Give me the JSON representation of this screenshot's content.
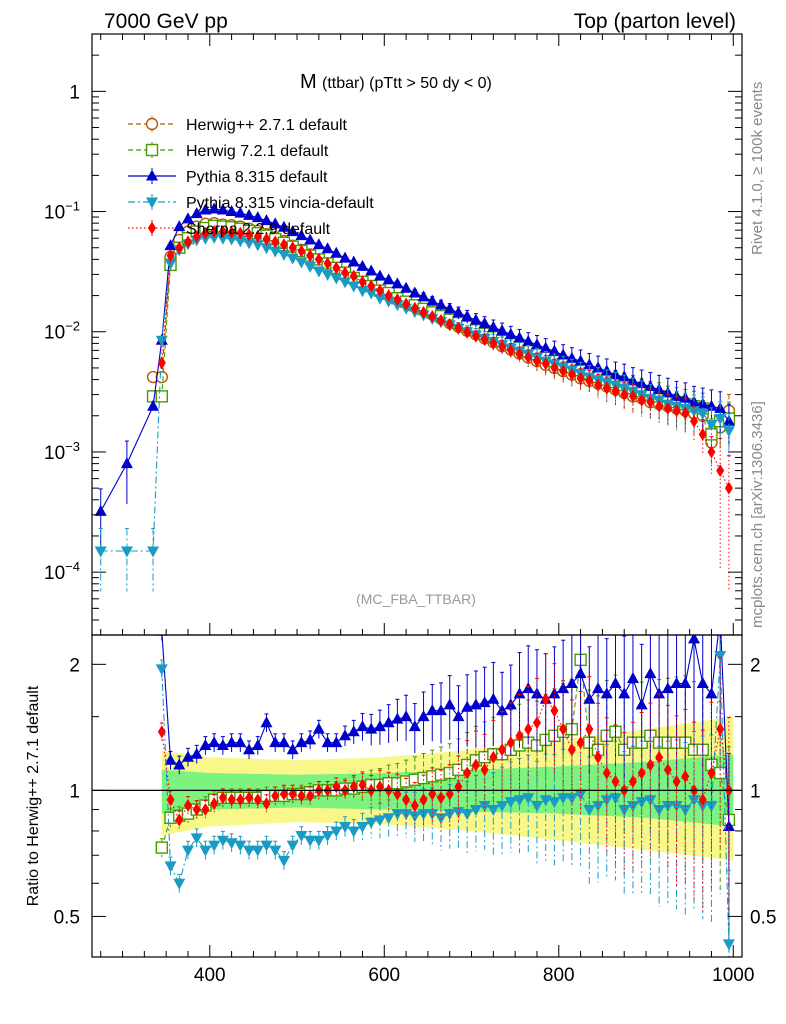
{
  "header": {
    "left": "7000 GeV pp",
    "right": "Top (parton level)"
  },
  "side_labels": {
    "rivet": "Rivet 4.1.0, ≥ 100k events",
    "mcplots": "mcplots.cern.ch [arXiv:1306.3436]"
  },
  "chart_data": [
    {
      "type": "line",
      "panel": "main",
      "title_main": "M",
      "title_sub": "(ttbar) (pTtt > 50 dy < 0)",
      "watermark": "(MC_FBA_TTBAR)",
      "xlabel": "",
      "ylabel": "",
      "x_range": [
        265,
        1010
      ],
      "y_scale": "log",
      "y_range": [
        3e-05,
        3.0
      ],
      "y_ticks": [
        {
          "value": 1,
          "label": "1"
        },
        {
          "value": 0.1,
          "label": "10^-1",
          "base": "10",
          "exp": "−1"
        },
        {
          "value": 0.01,
          "label": "10^-2",
          "base": "10",
          "exp": "−2"
        },
        {
          "value": 0.001,
          "label": "10^-3",
          "base": "10",
          "exp": "−3"
        },
        {
          "value": 0.0001,
          "label": "10^-4",
          "base": "10",
          "exp": "−4"
        }
      ],
      "x_ticks": [
        400,
        600,
        800,
        1000
      ],
      "legend_position": "top-left",
      "x": [
        275,
        305,
        335,
        345,
        355,
        365,
        375,
        385,
        395,
        405,
        415,
        425,
        435,
        445,
        455,
        465,
        475,
        485,
        495,
        505,
        515,
        525,
        535,
        545,
        555,
        565,
        575,
        585,
        595,
        605,
        615,
        625,
        635,
        645,
        655,
        665,
        675,
        685,
        695,
        705,
        715,
        725,
        735,
        745,
        755,
        765,
        775,
        785,
        795,
        805,
        815,
        825,
        835,
        845,
        855,
        865,
        875,
        885,
        895,
        905,
        915,
        925,
        935,
        945,
        955,
        965,
        975,
        985,
        995
      ],
      "series": [
        {
          "name": "Herwig++ 2.7.1 default",
          "color": "#b35900",
          "marker": "circle-open",
          "dash": "dashed",
          "values": [
            null,
            null,
            0.0042,
            0.0042,
            0.042,
            0.058,
            0.068,
            0.075,
            0.079,
            0.08,
            0.078,
            0.077,
            0.075,
            0.072,
            0.069,
            0.065,
            0.061,
            0.057,
            0.052,
            0.048,
            0.044,
            0.04,
            0.037,
            0.034,
            0.031,
            0.028,
            0.026,
            0.024,
            0.022,
            0.0205,
            0.019,
            0.0175,
            0.0162,
            0.015,
            0.0139,
            0.0128,
            0.0118,
            0.011,
            0.0102,
            0.0095,
            0.0088,
            0.0082,
            0.0076,
            0.0071,
            0.0066,
            0.0061,
            0.0057,
            0.0053,
            0.005,
            0.0047,
            0.0044,
            0.0041,
            0.0039,
            0.0037,
            0.0035,
            0.0033,
            0.0031,
            0.0029,
            0.0028,
            0.0026,
            0.0025,
            0.0024,
            0.0023,
            0.0022,
            0.0021,
            0.002,
            0.0012,
            0.0016,
            0.0022
          ]
        },
        {
          "name": "Herwig 7.2.1 default",
          "color": "#4a9a00",
          "marker": "square-open",
          "dash": "dashed",
          "values": [
            null,
            null,
            0.0029,
            0.0029,
            0.036,
            0.05,
            0.06,
            0.068,
            0.073,
            0.076,
            0.075,
            0.074,
            0.072,
            0.069,
            0.066,
            0.063,
            0.059,
            0.055,
            0.051,
            0.047,
            0.043,
            0.04,
            0.037,
            0.034,
            0.031,
            0.028,
            0.026,
            0.024,
            0.022,
            0.021,
            0.019,
            0.0178,
            0.0166,
            0.0155,
            0.0145,
            0.0135,
            0.0126,
            0.0118,
            0.011,
            0.0103,
            0.0096,
            0.009,
            0.0084,
            0.0079,
            0.0074,
            0.0069,
            0.0065,
            0.0061,
            0.0057,
            0.0054,
            0.0051,
            0.0048,
            0.0045,
            0.0042,
            0.004,
            0.0038,
            0.0036,
            0.0034,
            0.0032,
            0.003,
            0.0029,
            0.0027,
            0.0026,
            0.0025,
            0.0024,
            0.0023,
            0.0014,
            0.0018,
            0.0019
          ]
        },
        {
          "name": "Pythia 8.315 default",
          "color": "#0000cc",
          "marker": "triangle-up",
          "dash": "solid",
          "values": [
            0.00032,
            0.0008,
            0.0024,
            0.0085,
            0.052,
            0.075,
            0.087,
            0.096,
            0.103,
            0.105,
            0.103,
            0.1,
            0.097,
            0.093,
            0.089,
            0.084,
            0.079,
            0.074,
            0.068,
            0.063,
            0.058,
            0.053,
            0.049,
            0.045,
            0.041,
            0.038,
            0.035,
            0.032,
            0.029,
            0.027,
            0.025,
            0.023,
            0.021,
            0.0195,
            0.018,
            0.0167,
            0.0155,
            0.0144,
            0.0134,
            0.0125,
            0.0117,
            0.0109,
            0.0102,
            0.0095,
            0.0089,
            0.0083,
            0.0078,
            0.0073,
            0.0069,
            0.0064,
            0.006,
            0.0057,
            0.0053,
            0.005,
            0.0047,
            0.0044,
            0.0042,
            0.0039,
            0.0037,
            0.0035,
            0.0033,
            0.0031,
            0.0029,
            0.0028,
            0.0026,
            0.0025,
            0.0024,
            0.0023,
            0.0018
          ]
        },
        {
          "name": "Pythia 8.315 vincia-default",
          "color": "#1a9bc4",
          "marker": "triangle-down",
          "dash": "dashdot",
          "values": [
            0.00015,
            0.00015,
            0.00015,
            0.0085,
            0.037,
            0.048,
            0.054,
            0.058,
            0.06,
            0.061,
            0.06,
            0.059,
            0.057,
            0.055,
            0.053,
            0.05,
            0.047,
            0.044,
            0.041,
            0.038,
            0.035,
            0.032,
            0.03,
            0.028,
            0.026,
            0.024,
            0.022,
            0.021,
            0.019,
            0.018,
            0.0168,
            0.0157,
            0.0147,
            0.0138,
            0.0129,
            0.0121,
            0.0114,
            0.0107,
            0.01,
            0.0094,
            0.0088,
            0.0083,
            0.0078,
            0.0073,
            0.0069,
            0.0065,
            0.0061,
            0.0057,
            0.0054,
            0.0051,
            0.0048,
            0.0045,
            0.0042,
            0.004,
            0.0038,
            0.0036,
            0.0034,
            0.0032,
            0.003,
            0.0028,
            0.0027,
            0.0025,
            0.0024,
            0.0023,
            0.0022,
            0.0021,
            0.0017,
            0.0019,
            0.0015
          ]
        },
        {
          "name": "Sherpa 2.2.9 default",
          "color": "#ff0000",
          "marker": "diamond",
          "dash": "dotted",
          "values": [
            null,
            null,
            null,
            0.0055,
            0.043,
            0.05,
            0.056,
            0.062,
            0.066,
            0.068,
            0.068,
            0.067,
            0.066,
            0.064,
            0.062,
            0.059,
            0.056,
            0.053,
            0.05,
            0.047,
            0.043,
            0.04,
            0.037,
            0.034,
            0.031,
            0.029,
            0.026,
            0.024,
            0.022,
            0.02,
            0.0185,
            0.017,
            0.0157,
            0.0145,
            0.0134,
            0.0124,
            0.0115,
            0.0107,
            0.0099,
            0.0092,
            0.0086,
            0.008,
            0.0075,
            0.007,
            0.0065,
            0.0061,
            0.0057,
            0.0054,
            0.005,
            0.0047,
            0.0044,
            0.0041,
            0.0039,
            0.0036,
            0.0034,
            0.0032,
            0.003,
            0.0029,
            0.0027,
            0.0026,
            0.0024,
            0.0023,
            0.0022,
            0.0021,
            0.0018,
            0.0014,
            0.001,
            0.0007,
            0.0005
          ]
        }
      ]
    },
    {
      "type": "line",
      "panel": "ratio",
      "ylabel": "Ratio to Herwig++ 2.7.1 default",
      "x_range": [
        265,
        1010
      ],
      "y_scale": "log",
      "y_range": [
        0.4,
        2.35
      ],
      "y_ticks": [
        {
          "value": 0.5,
          "label": "0.5"
        },
        {
          "value": 1,
          "label": "1"
        },
        {
          "value": 2,
          "label": "2"
        }
      ],
      "x_ticks": [
        400,
        600,
        800,
        1000
      ],
      "band_inner_color": "#7ef27e",
      "band_outer_color": "#f8f88a",
      "band_x": [
        345,
        400,
        500,
        600,
        700,
        800,
        900,
        1000
      ],
      "band_inner_lo": [
        0.88,
        0.9,
        0.91,
        0.9,
        0.89,
        0.88,
        0.86,
        0.82
      ],
      "band_inner_hi": [
        1.12,
        1.1,
        1.09,
        1.1,
        1.12,
        1.14,
        1.17,
        1.22
      ],
      "band_outer_lo": [
        0.78,
        0.82,
        0.84,
        0.83,
        0.8,
        0.76,
        0.72,
        0.68
      ],
      "band_outer_hi": [
        1.24,
        1.2,
        1.18,
        1.2,
        1.25,
        1.32,
        1.4,
        1.5
      ],
      "x": [
        345,
        355,
        365,
        375,
        385,
        395,
        405,
        415,
        425,
        435,
        445,
        455,
        465,
        475,
        485,
        495,
        505,
        515,
        525,
        535,
        545,
        555,
        565,
        575,
        585,
        595,
        605,
        615,
        625,
        635,
        645,
        655,
        665,
        675,
        685,
        695,
        705,
        715,
        725,
        735,
        745,
        755,
        765,
        775,
        785,
        795,
        805,
        815,
        825,
        835,
        845,
        855,
        865,
        875,
        885,
        895,
        905,
        915,
        925,
        935,
        945,
        955,
        965,
        975,
        985,
        995
      ],
      "series": [
        {
          "name": "Herwig 7.2.1 default",
          "color": "#4a9a00",
          "marker": "square-open",
          "dash": "dashed",
          "values": [
            0.73,
            0.86,
            0.87,
            0.88,
            0.9,
            0.92,
            0.95,
            0.96,
            0.96,
            0.96,
            0.96,
            0.96,
            0.97,
            0.97,
            0.97,
            0.98,
            0.98,
            0.99,
            1.0,
            1.0,
            1.0,
            1.01,
            1.01,
            1.02,
            1.03,
            1.03,
            1.04,
            1.04,
            1.05,
            1.06,
            1.07,
            1.08,
            1.09,
            1.1,
            1.12,
            1.15,
            1.18,
            1.2,
            1.22,
            1.22,
            1.25,
            1.28,
            1.3,
            1.28,
            1.32,
            1.35,
            1.38,
            1.4,
            2.05,
            1.3,
            1.25,
            1.35,
            1.38,
            1.25,
            1.3,
            1.3,
            1.35,
            1.3,
            1.3,
            1.3,
            1.3,
            1.25,
            1.25,
            1.15,
            1.1,
            0.85
          ]
        },
        {
          "name": "Pythia 8.315 default",
          "color": "#0000cc",
          "marker": "triangle-up",
          "dash": "solid",
          "values": [
            2.4,
            1.18,
            1.15,
            1.2,
            1.22,
            1.28,
            1.3,
            1.28,
            1.3,
            1.3,
            1.25,
            1.28,
            1.45,
            1.3,
            1.3,
            1.25,
            1.3,
            1.32,
            1.4,
            1.3,
            1.3,
            1.35,
            1.38,
            1.42,
            1.4,
            1.42,
            1.45,
            1.48,
            1.5,
            1.42,
            1.5,
            1.55,
            1.55,
            1.6,
            1.5,
            1.58,
            1.6,
            1.62,
            1.65,
            1.55,
            1.6,
            1.7,
            1.75,
            1.7,
            1.65,
            1.7,
            1.75,
            1.8,
            1.9,
            1.65,
            1.75,
            1.7,
            1.8,
            1.7,
            1.85,
            1.6,
            1.9,
            1.7,
            1.75,
            1.8,
            1.8,
            2.3,
            1.8,
            1.7,
            2.6,
            0.82
          ]
        },
        {
          "name": "Pythia 8.315 vincia-default",
          "color": "#1a9bc4",
          "marker": "triangle-down",
          "dash": "dashdot",
          "values": [
            1.95,
            0.66,
            0.6,
            0.72,
            0.77,
            0.72,
            0.74,
            0.76,
            0.75,
            0.74,
            0.72,
            0.72,
            0.74,
            0.72,
            0.68,
            0.74,
            0.78,
            0.76,
            0.76,
            0.78,
            0.8,
            0.82,
            0.8,
            0.82,
            0.84,
            0.85,
            0.86,
            0.88,
            0.88,
            0.87,
            0.88,
            0.88,
            0.86,
            0.88,
            0.89,
            0.88,
            0.9,
            0.92,
            0.9,
            0.92,
            0.94,
            0.95,
            0.96,
            0.92,
            0.95,
            0.94,
            0.96,
            0.96,
            0.98,
            0.9,
            0.92,
            0.95,
            0.96,
            0.9,
            0.92,
            0.94,
            0.95,
            0.9,
            0.92,
            0.92,
            0.9,
            0.95,
            0.92,
            0.92,
            2.1,
            0.43
          ]
        },
        {
          "name": "Sherpa 2.2.9 default",
          "color": "#ff0000",
          "marker": "diamond",
          "dash": "dotted",
          "values": [
            1.38,
            0.95,
            0.85,
            0.92,
            0.9,
            0.9,
            0.93,
            0.96,
            0.95,
            0.95,
            0.96,
            0.95,
            0.93,
            0.97,
            0.98,
            0.98,
            0.97,
            0.97,
            1.0,
            1.0,
            1.02,
            1.0,
            1.02,
            1.03,
            1.0,
            1.02,
            1.0,
            0.98,
            0.95,
            0.92,
            0.95,
            0.98,
            0.96,
            0.98,
            1.02,
            1.1,
            1.15,
            1.12,
            1.2,
            1.25,
            1.3,
            1.35,
            1.4,
            1.45,
            1.65,
            1.55,
            1.4,
            1.25,
            1.3,
            1.4,
            1.2,
            1.1,
            1.05,
            1.0,
            1.05,
            1.1,
            1.15,
            1.2,
            1.12,
            1.05,
            1.08,
            1.0,
            0.95,
            1.1,
            1.4,
            1.0
          ]
        }
      ]
    }
  ]
}
